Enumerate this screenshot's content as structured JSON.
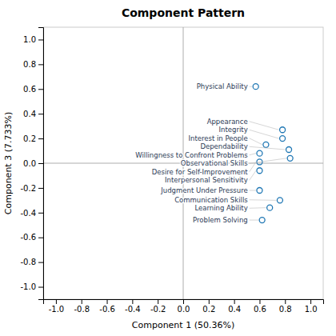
{
  "chart_data": {
    "type": "scatter",
    "title": "Component Pattern",
    "xlabel": "Component 1 (50.36%)",
    "ylabel": "Component 3 (7.733%)",
    "labels": [
      "Physical Ability",
      "Appearance",
      "Integrity",
      "Interest in People",
      "Dependability",
      "Willingness to Confront Problems",
      "Observational Skills",
      "Desire for Self-Improvement",
      "Interpersonal Sensitivity",
      "Judgment Under Pressure",
      "Communication Skills",
      "Learning Ability",
      "Problem Solving"
    ],
    "x": [
      0.57,
      0.78,
      0.78,
      0.65,
      0.83,
      0.6,
      0.84,
      0.6,
      0.6,
      0.6,
      0.76,
      0.68,
      0.62
    ],
    "values": [
      0.62,
      0.27,
      0.2,
      0.15,
      0.11,
      0.08,
      0.04,
      0.01,
      -0.06,
      -0.22,
      -0.3,
      -0.36,
      -0.46
    ],
    "xlim": [
      -1.1,
      1.1
    ],
    "ylim": [
      -1.1,
      1.1
    ],
    "xticks": [
      {
        "value": -1.0,
        "label": "-1.0"
      },
      -0.8,
      -0.6,
      -0.4,
      -0.2,
      {
        "value": 0.0,
        "label": "0.0"
      },
      0.2,
      0.4,
      0.6,
      0.8,
      {
        "value": 1.0,
        "label": "1.0"
      }
    ],
    "yticks": [
      {
        "value": -1.0,
        "label": "-1.0"
      },
      -0.8,
      -0.6,
      -0.4,
      -0.2,
      {
        "value": 0.0,
        "label": "0.0"
      },
      0.2,
      0.4,
      0.6,
      0.8,
      {
        "value": 1.0,
        "label": "1.0"
      }
    ],
    "grid": false
  }
}
